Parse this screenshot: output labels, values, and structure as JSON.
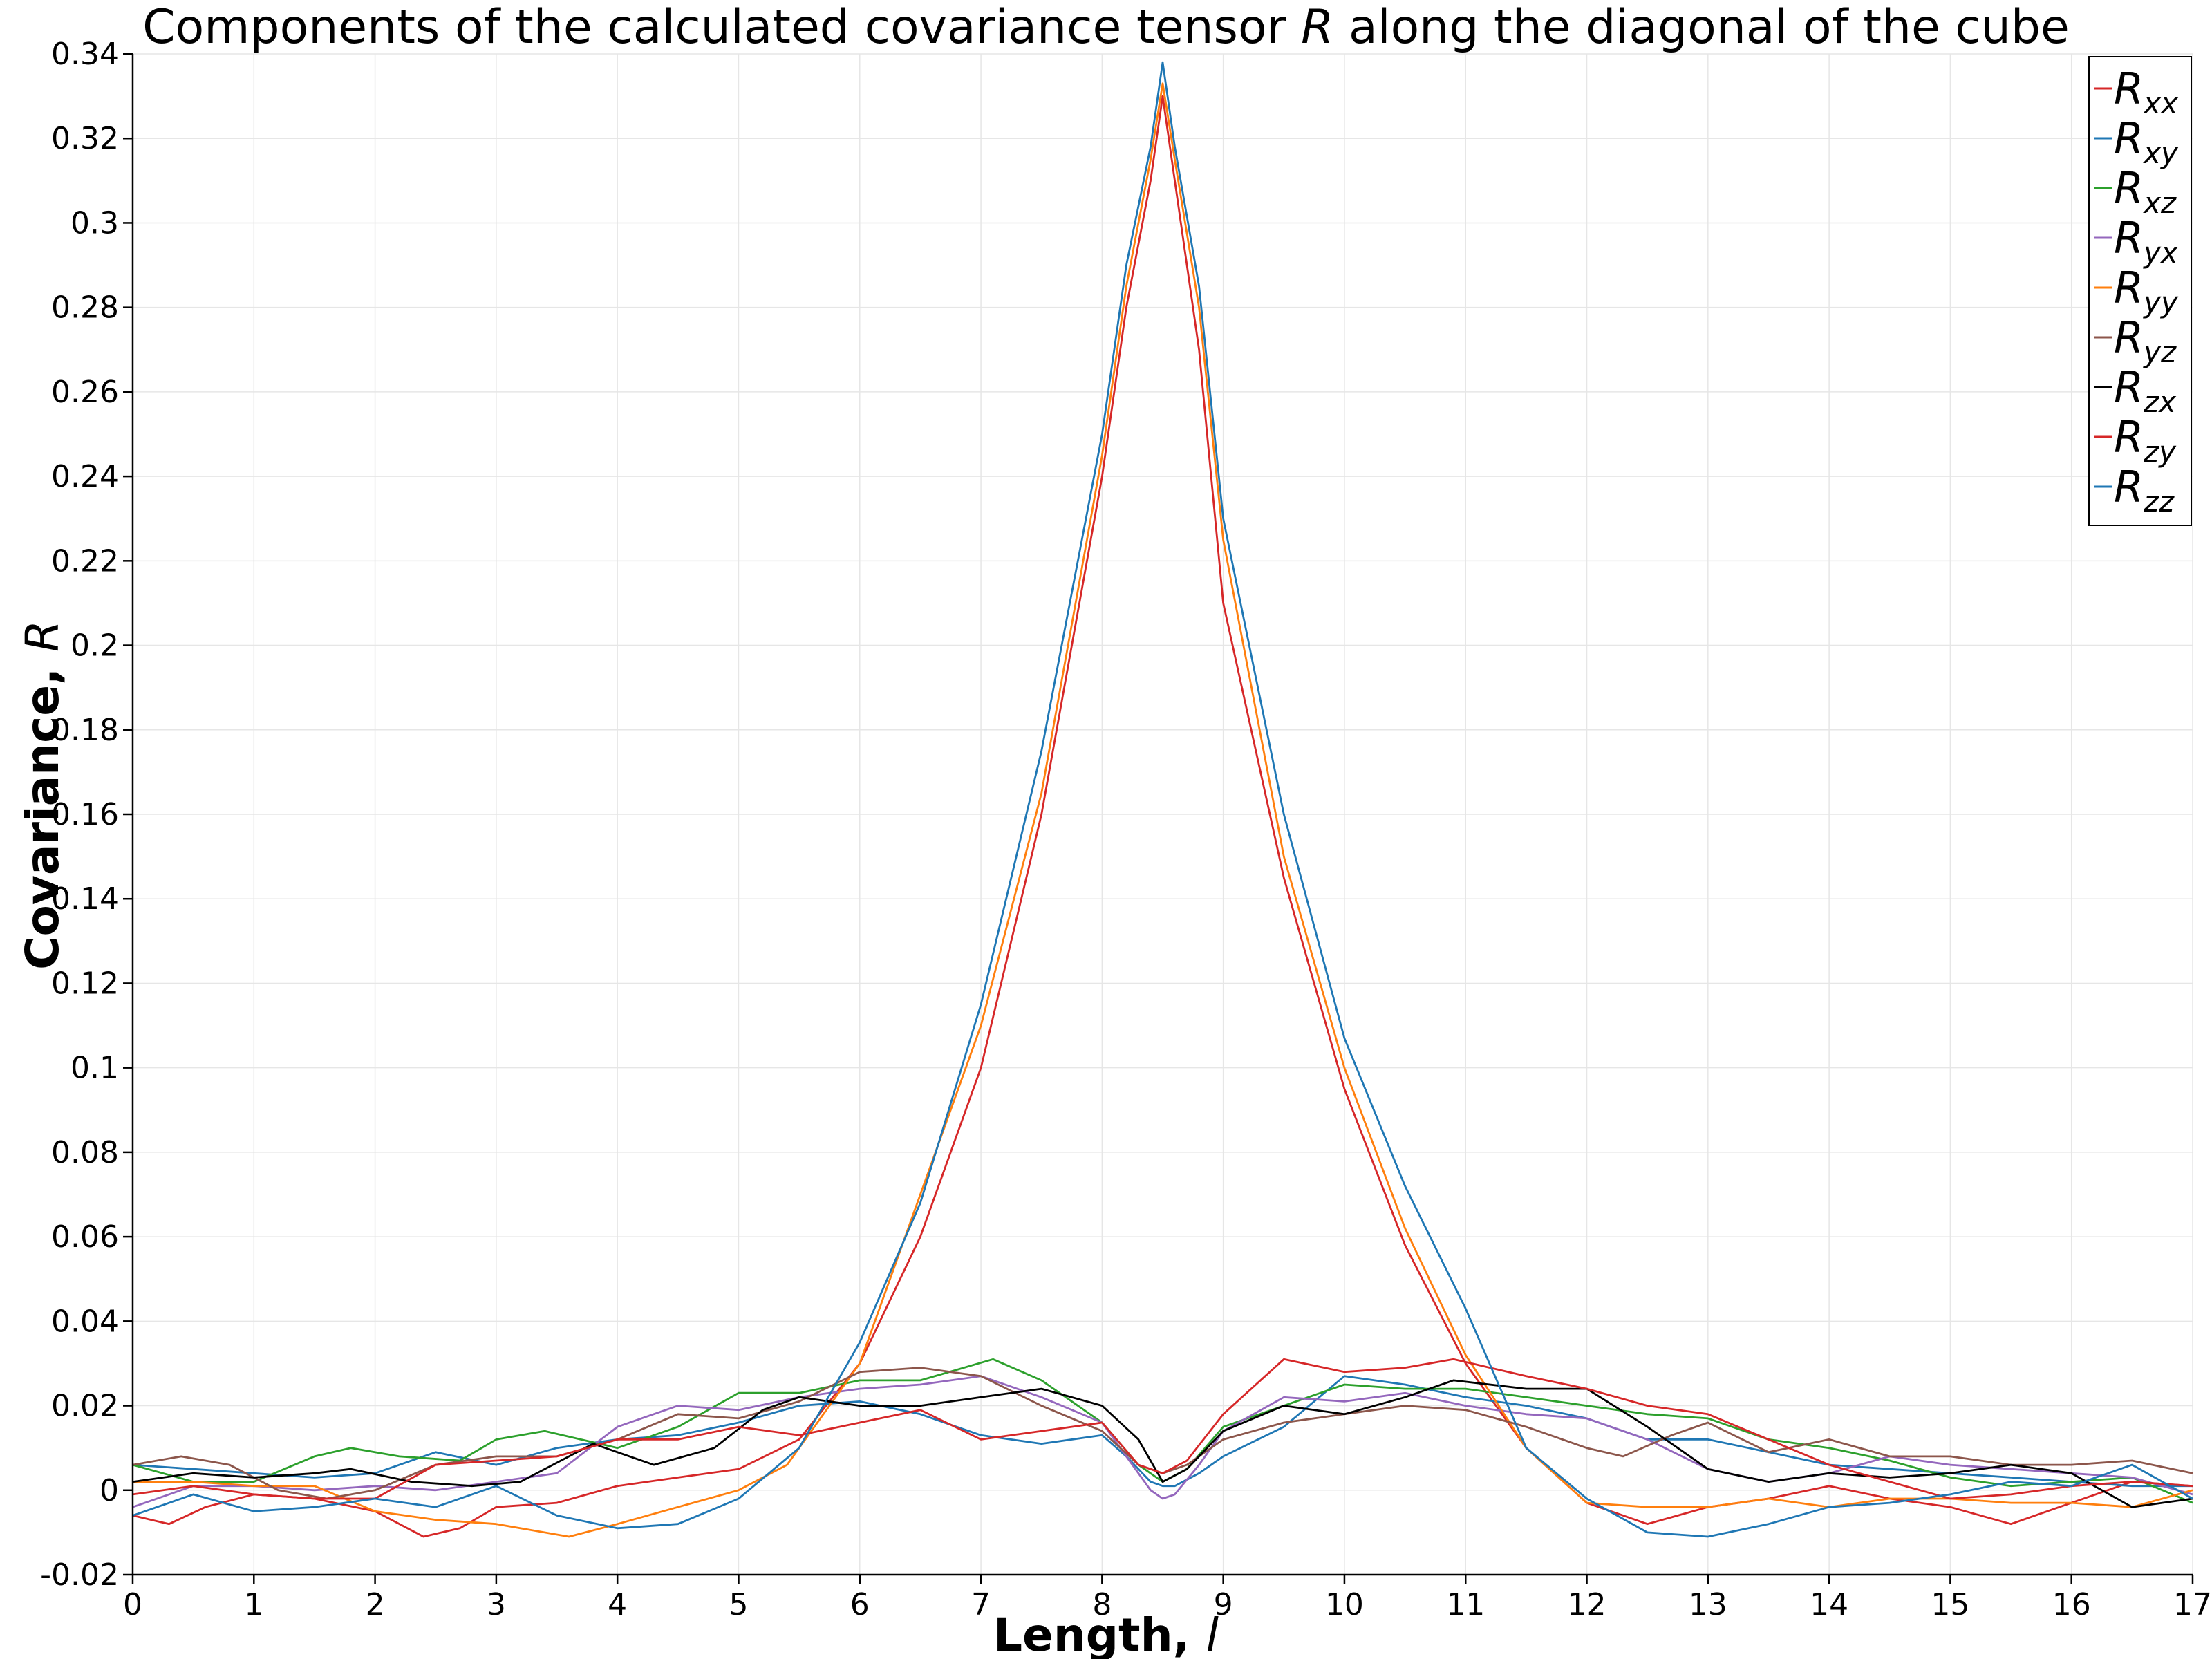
{
  "chart_data": {
    "type": "line",
    "title_parts": [
      "Components of the calculated covariance tensor ",
      "R",
      " along the diagonal of the cube"
    ],
    "xlabel_parts": [
      "Length, ",
      "l"
    ],
    "ylabel_parts": [
      "Covariance, ",
      "R"
    ],
    "xlim": [
      0,
      17
    ],
    "ylim": [
      -0.02,
      0.34
    ],
    "x_ticks": [
      0,
      1,
      2,
      3,
      4,
      5,
      6,
      7,
      8,
      9,
      10,
      11,
      12,
      13,
      14,
      15,
      16,
      17
    ],
    "x_tick_labels": [
      "0",
      "1",
      "2",
      "3",
      "4",
      "5",
      "6",
      "7",
      "8",
      "9",
      "10",
      "11",
      "12",
      "13",
      "14",
      "15",
      "16",
      "17"
    ],
    "y_ticks": [
      -0.02,
      0,
      0.02,
      0.04,
      0.06,
      0.08,
      0.1,
      0.12,
      0.14,
      0.16,
      0.18,
      0.2,
      0.22,
      0.24,
      0.26,
      0.28,
      0.3,
      0.32,
      0.34
    ],
    "y_tick_labels": [
      "-0.02",
      "0",
      "0.02",
      "0.04",
      "0.06",
      "0.08",
      "0.1",
      "0.12",
      "0.14",
      "0.16",
      "0.18",
      "0.2",
      "0.22",
      "0.24",
      "0.26",
      "0.28",
      "0.3",
      "0.32",
      "0.34"
    ],
    "grid": true,
    "legend_position": "top-right",
    "series": [
      {
        "name": "R",
        "sub": "xx",
        "color": "#d62728",
        "x": [
          0,
          0.3,
          0.6,
          1,
          1.5,
          2,
          2.4,
          2.7,
          3,
          3.5,
          4,
          4.5,
          5,
          5.5,
          6,
          6.5,
          7,
          7.5,
          8,
          8.2,
          8.4,
          8.5,
          8.6,
          8.8,
          9,
          9.5,
          10,
          10.5,
          11,
          11.5,
          12,
          12.5,
          13,
          13.5,
          14,
          14.5,
          15,
          15.5,
          16,
          16.5,
          17
        ],
        "y": [
          -0.006,
          -0.008,
          -0.004,
          -0.001,
          -0.002,
          -0.005,
          -0.011,
          -0.009,
          -0.004,
          -0.003,
          0.001,
          0.003,
          0.005,
          0.012,
          0.03,
          0.06,
          0.1,
          0.16,
          0.24,
          0.28,
          0.31,
          0.33,
          0.31,
          0.27,
          0.21,
          0.145,
          0.095,
          0.058,
          0.03,
          0.01,
          -0.003,
          -0.008,
          -0.004,
          -0.002,
          0.001,
          -0.002,
          -0.004,
          -0.008,
          -0.003,
          0.002,
          0.001
        ]
      },
      {
        "name": "R",
        "sub": "xy",
        "color": "#1f77b4",
        "x": [
          0,
          0.5,
          1,
          1.5,
          2,
          2.5,
          3,
          3.5,
          4,
          4.5,
          5,
          5.5,
          6,
          6.5,
          7,
          7.5,
          8,
          8.2,
          8.4,
          8.5,
          8.6,
          8.8,
          9,
          9.5,
          10,
          10.5,
          11,
          11.5,
          12,
          12.5,
          13,
          13.5,
          14,
          14.5,
          15,
          15.5,
          16,
          16.5,
          17
        ],
        "y": [
          0.006,
          0.005,
          0.004,
          0.003,
          0.004,
          0.009,
          0.006,
          0.01,
          0.012,
          0.013,
          0.016,
          0.02,
          0.021,
          0.018,
          0.013,
          0.011,
          0.013,
          0.008,
          0.002,
          0.001,
          0.001,
          0.004,
          0.008,
          0.015,
          0.027,
          0.025,
          0.022,
          0.02,
          0.017,
          0.012,
          0.012,
          0.009,
          0.006,
          0.005,
          0.004,
          0.003,
          0.002,
          0.001,
          0.001
        ]
      },
      {
        "name": "R",
        "sub": "xz",
        "color": "#2ca02c",
        "x": [
          0,
          0.5,
          1,
          1.5,
          1.8,
          2.2,
          2.7,
          3,
          3.4,
          4,
          4.5,
          5,
          5.5,
          6,
          6.5,
          7.1,
          7.5,
          8,
          8.3,
          8.5,
          8.7,
          9,
          9.5,
          10,
          10.5,
          11,
          11.5,
          12,
          12.5,
          13,
          13.5,
          14,
          14.5,
          15,
          15.5,
          16,
          16.5,
          17
        ],
        "y": [
          0.006,
          0.002,
          0.002,
          0.008,
          0.01,
          0.008,
          0.007,
          0.012,
          0.014,
          0.01,
          0.015,
          0.023,
          0.023,
          0.026,
          0.026,
          0.031,
          0.026,
          0.016,
          0.006,
          0.002,
          0.005,
          0.015,
          0.02,
          0.025,
          0.024,
          0.024,
          0.022,
          0.02,
          0.018,
          0.017,
          0.012,
          0.01,
          0.007,
          0.003,
          0.001,
          0.002,
          0.003,
          -0.003
        ]
      },
      {
        "name": "R",
        "sub": "yx",
        "color": "#9467bd",
        "x": [
          0,
          0.5,
          1,
          1.5,
          2,
          2.5,
          3,
          3.5,
          4,
          4.5,
          5,
          5.5,
          6,
          6.5,
          7,
          7.5,
          8,
          8.2,
          8.4,
          8.5,
          8.6,
          8.8,
          9,
          9.5,
          10,
          10.5,
          11,
          11.5,
          12,
          12.5,
          13,
          13.5,
          14,
          14.5,
          15,
          15.5,
          16,
          16.5,
          17
        ],
        "y": [
          -0.004,
          0.001,
          0.001,
          0.0,
          0.001,
          0.0,
          0.002,
          0.004,
          0.015,
          0.02,
          0.019,
          0.022,
          0.024,
          0.025,
          0.027,
          0.022,
          0.016,
          0.008,
          0.0,
          -0.002,
          -0.001,
          0.006,
          0.014,
          0.022,
          0.021,
          0.023,
          0.02,
          0.018,
          0.017,
          0.012,
          0.005,
          0.002,
          0.004,
          0.008,
          0.006,
          0.005,
          0.004,
          0.003,
          -0.001
        ]
      },
      {
        "name": "R",
        "sub": "yy",
        "color": "#ff7f0e",
        "x": [
          0,
          0.5,
          1,
          1.5,
          2,
          2.5,
          3,
          3.6,
          4,
          4.5,
          5,
          5.4,
          6,
          6.5,
          7,
          7.5,
          8,
          8.2,
          8.4,
          8.5,
          8.6,
          8.8,
          9,
          9.5,
          10,
          10.5,
          11,
          11.5,
          12,
          12.5,
          13,
          13.5,
          14,
          14.5,
          15,
          15.5,
          16,
          16.5,
          17
        ],
        "y": [
          0.002,
          0.002,
          0.001,
          0.001,
          -0.005,
          -0.007,
          -0.008,
          -0.011,
          -0.008,
          -0.004,
          0.0,
          0.006,
          0.03,
          0.07,
          0.11,
          0.165,
          0.245,
          0.285,
          0.315,
          0.333,
          0.315,
          0.28,
          0.225,
          0.15,
          0.1,
          0.062,
          0.032,
          0.01,
          -0.003,
          -0.004,
          -0.004,
          -0.002,
          -0.004,
          -0.002,
          -0.002,
          -0.003,
          -0.003,
          -0.004,
          0.0
        ]
      },
      {
        "name": "R",
        "sub": "yz",
        "color": "#8c564b",
        "x": [
          0,
          0.4,
          0.8,
          1.2,
          1.6,
          2,
          2.5,
          3,
          3.5,
          4,
          4.5,
          5,
          5.5,
          6,
          6.5,
          7,
          7.5,
          8,
          8.3,
          8.5,
          8.7,
          9,
          9.5,
          10,
          10.5,
          11,
          11.5,
          12,
          12.3,
          12.7,
          13,
          13.5,
          14,
          14.5,
          15,
          15.5,
          16,
          16.5,
          17
        ],
        "y": [
          0.006,
          0.008,
          0.006,
          0.0,
          -0.002,
          0.0,
          0.006,
          0.008,
          0.008,
          0.012,
          0.018,
          0.017,
          0.021,
          0.028,
          0.029,
          0.027,
          0.02,
          0.014,
          0.006,
          0.004,
          0.006,
          0.012,
          0.016,
          0.018,
          0.02,
          0.019,
          0.015,
          0.01,
          0.008,
          0.013,
          0.016,
          0.009,
          0.012,
          0.008,
          0.008,
          0.006,
          0.006,
          0.007,
          0.004
        ]
      },
      {
        "name": "R",
        "sub": "zx",
        "color": "#000000",
        "x": [
          0,
          0.5,
          1,
          1.5,
          1.8,
          2.3,
          2.8,
          3.2,
          3.8,
          4.3,
          4.8,
          5.2,
          5.5,
          6,
          6.5,
          7,
          7.5,
          8,
          8.3,
          8.5,
          8.7,
          9,
          9.5,
          10,
          10.5,
          10.9,
          11.5,
          12,
          12.5,
          13,
          13.5,
          14,
          14.5,
          15,
          15.5,
          16,
          16.5,
          17
        ],
        "y": [
          0.002,
          0.004,
          0.003,
          0.004,
          0.005,
          0.002,
          0.001,
          0.002,
          0.011,
          0.006,
          0.01,
          0.019,
          0.022,
          0.02,
          0.02,
          0.022,
          0.024,
          0.02,
          0.012,
          0.002,
          0.005,
          0.014,
          0.02,
          0.018,
          0.022,
          0.026,
          0.024,
          0.024,
          0.015,
          0.005,
          0.002,
          0.004,
          0.003,
          0.004,
          0.006,
          0.004,
          -0.004,
          -0.002
        ]
      },
      {
        "name": "R",
        "sub": "zy",
        "color": "#d62728",
        "x": [
          0,
          0.5,
          1,
          1.5,
          2,
          2.5,
          3,
          3.5,
          4,
          4.5,
          5,
          5.5,
          6,
          6.5,
          7,
          7.5,
          8,
          8.3,
          8.5,
          8.7,
          9,
          9.5,
          10,
          10.5,
          10.9,
          11.5,
          12,
          12.5,
          13,
          13.5,
          14,
          14.5,
          15,
          15.5,
          16,
          16.5,
          17
        ],
        "y": [
          -0.001,
          0.001,
          -0.001,
          -0.002,
          -0.002,
          0.006,
          0.007,
          0.008,
          0.012,
          0.012,
          0.015,
          0.013,
          0.016,
          0.019,
          0.012,
          0.014,
          0.016,
          0.006,
          0.004,
          0.007,
          0.018,
          0.031,
          0.028,
          0.029,
          0.031,
          0.027,
          0.024,
          0.02,
          0.018,
          0.012,
          0.006,
          0.002,
          -0.002,
          -0.001,
          0.001,
          0.002,
          0.001
        ]
      },
      {
        "name": "R",
        "sub": "zz",
        "color": "#1f77b4",
        "x": [
          0,
          0.5,
          1,
          1.5,
          2,
          2.5,
          3,
          3.5,
          4,
          4.5,
          5,
          5.5,
          6,
          6.5,
          7,
          7.5,
          8,
          8.2,
          8.4,
          8.5,
          8.6,
          8.8,
          9,
          9.5,
          10,
          10.5,
          11,
          11.5,
          12,
          12.5,
          13,
          13.5,
          14,
          14.5,
          15,
          15.5,
          16,
          16.5,
          17
        ],
        "y": [
          -0.006,
          -0.001,
          -0.005,
          -0.004,
          -0.002,
          -0.004,
          0.001,
          -0.006,
          -0.009,
          -0.008,
          -0.002,
          0.01,
          0.035,
          0.068,
          0.115,
          0.175,
          0.25,
          0.29,
          0.318,
          0.338,
          0.318,
          0.285,
          0.23,
          0.16,
          0.107,
          0.072,
          0.043,
          0.01,
          -0.002,
          -0.01,
          -0.011,
          -0.008,
          -0.004,
          -0.003,
          -0.001,
          0.002,
          0.001,
          0.006,
          -0.002
        ]
      }
    ]
  }
}
